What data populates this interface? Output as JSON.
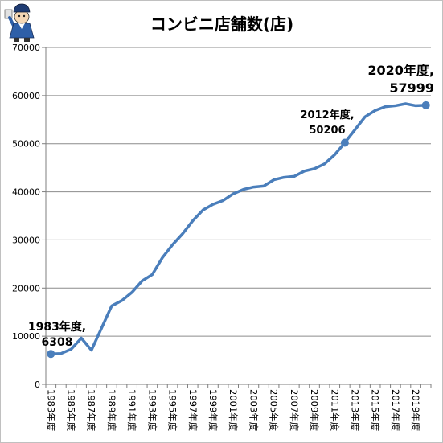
{
  "logo": {
    "icon": "mascot-logo-icon"
  },
  "chart_data": {
    "type": "line",
    "title": "コンビニ店舗数(店)",
    "x": [
      1983,
      1984,
      1985,
      1986,
      1987,
      1988,
      1989,
      1990,
      1991,
      1992,
      1993,
      1994,
      1995,
      1996,
      1997,
      1998,
      1999,
      2000,
      2001,
      2002,
      2003,
      2004,
      2005,
      2006,
      2007,
      2008,
      2009,
      2010,
      2011,
      2012,
      2013,
      2014,
      2015,
      2016,
      2017,
      2018,
      2019,
      2020
    ],
    "x_ticks": [
      {
        "x": 1983,
        "label": "1983年度"
      },
      {
        "x": 1985,
        "label": "1985年度"
      },
      {
        "x": 1987,
        "label": "1987年度"
      },
      {
        "x": 1989,
        "label": "1989年度"
      },
      {
        "x": 1991,
        "label": "1991年度"
      },
      {
        "x": 1993,
        "label": "1993年度"
      },
      {
        "x": 1995,
        "label": "1995年度"
      },
      {
        "x": 1997,
        "label": "1997年度"
      },
      {
        "x": 1999,
        "label": "1999年度"
      },
      {
        "x": 2001,
        "label": "2001年度"
      },
      {
        "x": 2003,
        "label": "2003年度"
      },
      {
        "x": 2005,
        "label": "2005年度"
      },
      {
        "x": 2007,
        "label": "2007年度"
      },
      {
        "x": 2009,
        "label": "2009年度"
      },
      {
        "x": 2011,
        "label": "2011年度"
      },
      {
        "x": 2013,
        "label": "2013年度"
      },
      {
        "x": 2015,
        "label": "2015年度"
      },
      {
        "x": 2017,
        "label": "2017年度"
      },
      {
        "x": 2019,
        "label": "2019年度"
      }
    ],
    "ylim": [
      0,
      70000
    ],
    "y_ticks": [
      0,
      10000,
      20000,
      30000,
      40000,
      50000,
      60000,
      70000
    ],
    "grid": true,
    "series": [
      {
        "values": [
          6308,
          6400,
          7300,
          9600,
          7100,
          11700,
          16300,
          17400,
          19100,
          21500,
          22800,
          26300,
          29000,
          31300,
          34000,
          36200,
          37400,
          38200,
          39600,
          40500,
          41000,
          41200,
          42500,
          43000,
          43200,
          44300,
          44800,
          45800,
          47700,
          50206,
          52900,
          55600,
          56900,
          57700,
          57900,
          58300,
          57900,
          57999
        ]
      }
    ],
    "annotations": [
      {
        "x": 1983,
        "label": "1983年度,",
        "value": "6308"
      },
      {
        "x": 2012,
        "label": "2012年度,",
        "value": "50206"
      },
      {
        "x": 2020,
        "label": "2020年度,",
        "value": "57999"
      }
    ],
    "colors": {
      "line": "#4A7EBB",
      "grid": "#8C8C8C",
      "axis": "#7F7F7F",
      "frame": "#C0C0C0"
    }
  }
}
